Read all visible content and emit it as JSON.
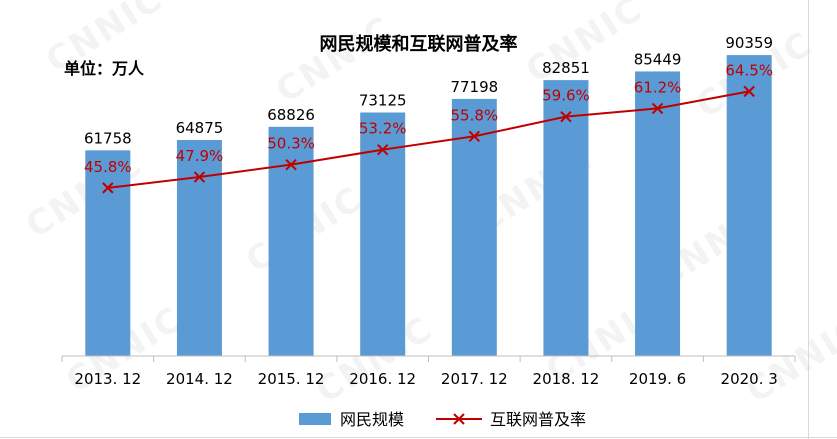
{
  "chart_data": {
    "type": "bar+line",
    "title": "网民规模和互联网普及率",
    "unit_label": "单位：万人",
    "categories": [
      "2013. 12",
      "2014. 12",
      "2015. 12",
      "2016. 12",
      "2017. 12",
      "2018. 12",
      "2019. 6",
      "2020. 3"
    ],
    "series": [
      {
        "name": "网民规模",
        "type": "bar",
        "values": [
          61758,
          64875,
          68826,
          73125,
          77198,
          82851,
          85449,
          90359
        ],
        "labels": [
          "61758",
          "64875",
          "68826",
          "73125",
          "77198",
          "82851",
          "85449",
          "90359"
        ],
        "color": "#5b9bd5"
      },
      {
        "name": "互联网普及率",
        "type": "line",
        "values": [
          45.8,
          47.9,
          50.3,
          53.2,
          55.8,
          59.6,
          61.2,
          64.5
        ],
        "labels": [
          "45.8%",
          "47.9%",
          "50.3%",
          "53.2%",
          "55.8%",
          "59.6%",
          "61.2%",
          "64.5%"
        ],
        "color": "#c00000",
        "marker": "x"
      }
    ],
    "ylim": [
      0,
      100000
    ],
    "y2lim": [
      20,
      70
    ],
    "grid": false,
    "legend_position": "bottom-center",
    "watermark": "CNNIC"
  }
}
